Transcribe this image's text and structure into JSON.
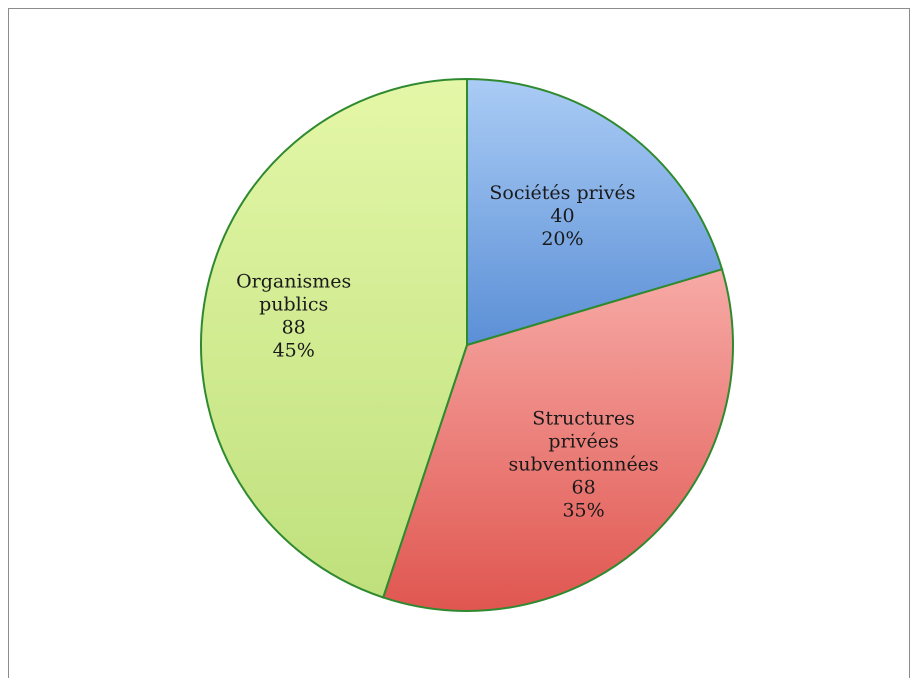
{
  "chart_data": {
    "type": "pie",
    "title": "",
    "legend": "none",
    "slices": [
      {
        "label_lines": [
          "Sociétés privés"
        ],
        "value": 40,
        "value_text": "40",
        "percent_text": "20%",
        "color": "#5b8fd6",
        "color_light": "#aaccf5"
      },
      {
        "label_lines": [
          "Structures",
          "privées",
          "subventionnées"
        ],
        "value": 68,
        "value_text": "68",
        "percent_text": "35%",
        "color": "#e05650",
        "color_light": "#f7aaa6"
      },
      {
        "label_lines": [
          "Organismes",
          "publics"
        ],
        "value": 88,
        "value_text": "88",
        "percent_text": "45%",
        "color": "#bfe07c",
        "color_light": "#e4f7a8"
      }
    ],
    "border_color": "#2f8a2f",
    "start_angle_deg": 0,
    "direction": "clockwise"
  }
}
